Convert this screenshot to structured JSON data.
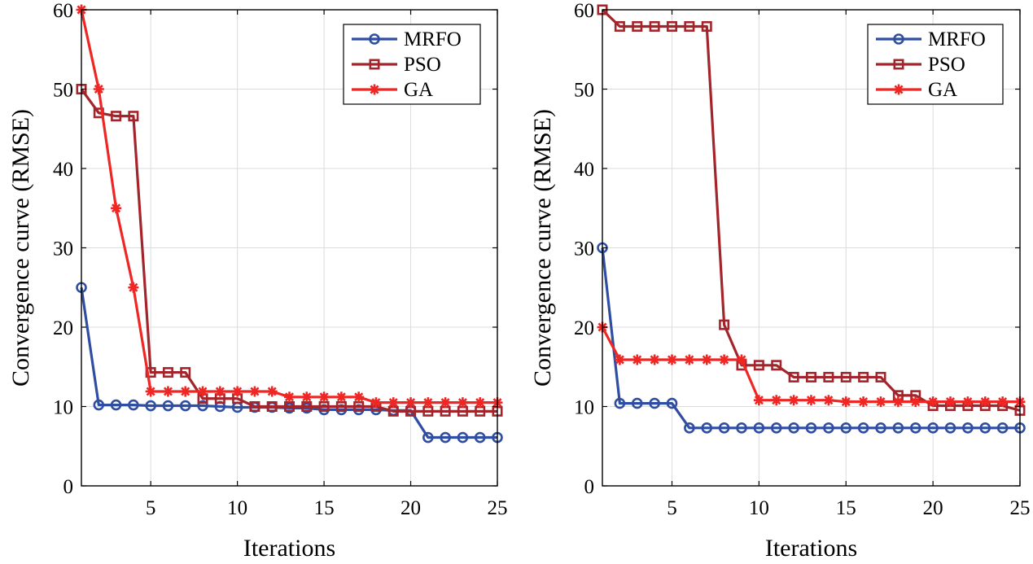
{
  "chart_data": [
    {
      "type": "line",
      "title": "",
      "xlabel": "Iterations",
      "ylabel": "Convergence curve (RMSE)",
      "xlim": [
        1,
        25
      ],
      "ylim": [
        0,
        60
      ],
      "xticks": [
        5,
        10,
        15,
        20,
        25
      ],
      "yticks": [
        0,
        10,
        20,
        30,
        40,
        50,
        60
      ],
      "grid": true,
      "legend_position": "top-right",
      "x": [
        1,
        2,
        3,
        4,
        5,
        6,
        7,
        8,
        9,
        10,
        11,
        12,
        13,
        14,
        15,
        16,
        17,
        18,
        19,
        20,
        21,
        22,
        23,
        24,
        25
      ],
      "series": [
        {
          "name": "MRFO",
          "color": "#2f4ea2",
          "marker": "circle",
          "values": [
            25,
            10.2,
            10.2,
            10.2,
            10.1,
            10.1,
            10.1,
            10.1,
            10,
            9.9,
            9.9,
            9.9,
            9.8,
            9.8,
            9.6,
            9.6,
            9.6,
            9.6,
            9.5,
            9.5,
            6.1,
            6.1,
            6.1,
            6.1,
            6.1
          ]
        },
        {
          "name": "PSO",
          "color": "#a3252b",
          "marker": "square",
          "values": [
            50,
            47,
            46.6,
            46.6,
            14.3,
            14.3,
            14.3,
            11,
            11,
            11,
            10,
            10,
            10,
            10,
            10,
            10,
            10,
            10,
            9.4,
            9.4,
            9.4,
            9.4,
            9.4,
            9.4,
            9.4
          ]
        },
        {
          "name": "GA",
          "color": "#ee2624",
          "marker": "star",
          "values": [
            60,
            50,
            35,
            25,
            11.9,
            11.9,
            11.9,
            11.9,
            11.9,
            11.9,
            11.9,
            11.9,
            11.2,
            11.2,
            11.2,
            11.2,
            11.2,
            10.5,
            10.5,
            10.5,
            10.5,
            10.5,
            10.5,
            10.5,
            10.5
          ]
        }
      ]
    },
    {
      "type": "line",
      "title": "",
      "xlabel": "Iterations",
      "ylabel": "Convergence curve (RMSE)",
      "xlim": [
        1,
        25
      ],
      "ylim": [
        0,
        60
      ],
      "xticks": [
        5,
        10,
        15,
        20,
        25
      ],
      "yticks": [
        0,
        10,
        20,
        30,
        40,
        50,
        60
      ],
      "grid": true,
      "legend_position": "top-right",
      "x": [
        1,
        2,
        3,
        4,
        5,
        6,
        7,
        8,
        9,
        10,
        11,
        12,
        13,
        14,
        15,
        16,
        17,
        18,
        19,
        20,
        21,
        22,
        23,
        24,
        25
      ],
      "series": [
        {
          "name": "MRFO",
          "color": "#2f4ea2",
          "marker": "circle",
          "values": [
            30,
            10.4,
            10.4,
            10.4,
            10.4,
            7.3,
            7.3,
            7.3,
            7.3,
            7.3,
            7.3,
            7.3,
            7.3,
            7.3,
            7.3,
            7.3,
            7.3,
            7.3,
            7.3,
            7.3,
            7.3,
            7.3,
            7.3,
            7.3,
            7.3
          ]
        },
        {
          "name": "PSO",
          "color": "#a3252b",
          "marker": "square",
          "values": [
            60,
            57.9,
            57.9,
            57.9,
            57.9,
            57.9,
            57.9,
            20.3,
            15.2,
            15.2,
            15.2,
            13.7,
            13.7,
            13.7,
            13.7,
            13.7,
            13.7,
            11.4,
            11.4,
            10.1,
            10.1,
            10.1,
            10.1,
            10.1,
            9.5
          ]
        },
        {
          "name": "GA",
          "color": "#ee2624",
          "marker": "star",
          "values": [
            20,
            15.9,
            15.9,
            15.9,
            15.9,
            15.9,
            15.9,
            15.9,
            15.9,
            10.8,
            10.8,
            10.8,
            10.8,
            10.8,
            10.6,
            10.6,
            10.6,
            10.6,
            10.6,
            10.6,
            10.6,
            10.6,
            10.6,
            10.6,
            10.6
          ]
        }
      ]
    }
  ]
}
